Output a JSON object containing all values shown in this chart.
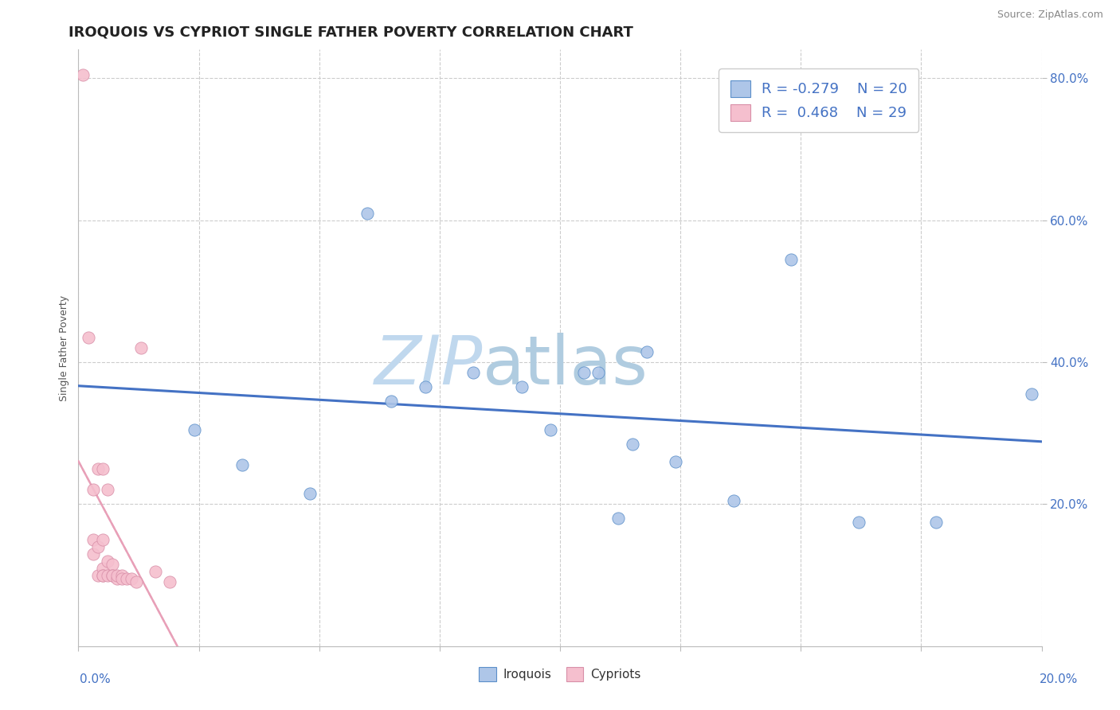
{
  "title": "IROQUOIS VS CYPRIOT SINGLE FATHER POVERTY CORRELATION CHART",
  "source": "Source: ZipAtlas.com",
  "ylabel": "Single Father Poverty",
  "legend_iroquois": "Iroquois",
  "legend_cypriots": "Cypriots",
  "r_iroquois": -0.279,
  "n_iroquois": 20,
  "r_cypriots": 0.468,
  "n_cypriots": 29,
  "iroquois_color": "#aec6e8",
  "iroquois_edge_color": "#5b8fc9",
  "iroquois_line_color": "#4472c4",
  "cypriot_color": "#f5bfce",
  "cypriot_edge_color": "#d88fa8",
  "cypriot_trend_color": "#e8a0b8",
  "watermark_zip_color": "#c8ddf0",
  "watermark_atlas_color": "#b8cce4",
  "background_color": "#ffffff",
  "grid_color": "#cccccc",
  "iroquois_x": [
    0.024,
    0.034,
    0.048,
    0.06,
    0.065,
    0.072,
    0.082,
    0.092,
    0.098,
    0.105,
    0.108,
    0.112,
    0.115,
    0.118,
    0.124,
    0.136,
    0.148,
    0.162,
    0.178,
    0.198
  ],
  "iroquois_y": [
    0.305,
    0.255,
    0.215,
    0.61,
    0.345,
    0.365,
    0.385,
    0.365,
    0.305,
    0.385,
    0.385,
    0.18,
    0.285,
    0.415,
    0.26,
    0.205,
    0.545,
    0.175,
    0.175,
    0.355
  ],
  "cypriot_x": [
    0.001,
    0.002,
    0.003,
    0.003,
    0.003,
    0.004,
    0.004,
    0.004,
    0.005,
    0.005,
    0.005,
    0.005,
    0.005,
    0.006,
    0.006,
    0.006,
    0.007,
    0.007,
    0.007,
    0.008,
    0.008,
    0.009,
    0.009,
    0.01,
    0.011,
    0.012,
    0.013,
    0.016,
    0.019
  ],
  "cypriot_y": [
    0.805,
    0.435,
    0.22,
    0.15,
    0.13,
    0.25,
    0.14,
    0.1,
    0.25,
    0.15,
    0.11,
    0.1,
    0.1,
    0.22,
    0.12,
    0.1,
    0.115,
    0.1,
    0.1,
    0.095,
    0.1,
    0.1,
    0.095,
    0.095,
    0.095,
    0.09,
    0.42,
    0.105,
    0.09
  ],
  "xlim": [
    0.0,
    0.2
  ],
  "ylim": [
    0.0,
    0.84
  ],
  "yticks": [
    0.2,
    0.4,
    0.6,
    0.8
  ],
  "ytick_labels": [
    "20.0%",
    "40.0%",
    "60.0%",
    "80.0%"
  ],
  "xtick_positions": [
    0.0,
    0.025,
    0.05,
    0.075,
    0.1,
    0.125,
    0.15,
    0.175,
    0.2
  ],
  "title_fontsize": 13,
  "axis_label_fontsize": 9,
  "tick_fontsize": 11
}
